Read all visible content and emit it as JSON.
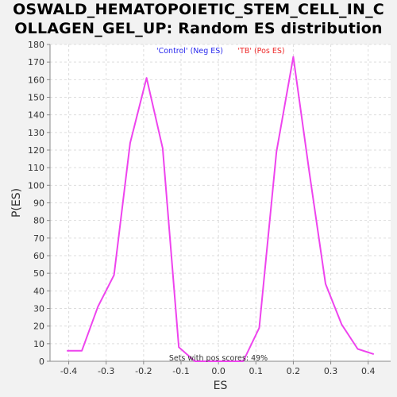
{
  "title_line1": "OSWALD_HEMATOPOIETIC_STEM_CELL_IN_C",
  "title_line2": "OLLAGEN_GEL_UP: Random ES distribution",
  "colors": {
    "background": "#f2f2f2",
    "plot_background": "#ffffff",
    "line": "#ee44ee",
    "neg_legend": "#2a2aee",
    "pos_legend": "#ee2a2a",
    "grid": "#dddddd"
  },
  "chart_data": {
    "type": "line",
    "title": "OSWALD_HEMATOPOIETIC_STEM_CELL_IN_COLLAGEN_GEL_UP: Random ES distribution",
    "xlabel": "ES",
    "ylabel": "P(ES)",
    "xlim": [
      -0.45,
      0.46
    ],
    "ylim": [
      0,
      180
    ],
    "grid": true,
    "x_ticks": [
      "-0.4",
      "-0.3",
      "-0.2",
      "-0.1",
      "0.0",
      "0.1",
      "0.2",
      "0.3",
      "0.4"
    ],
    "x_tick_values": [
      -0.4,
      -0.3,
      -0.2,
      -0.1,
      0.0,
      0.1,
      0.2,
      0.3,
      0.4
    ],
    "y_ticks": [
      "0",
      "10",
      "20",
      "30",
      "40",
      "50",
      "60",
      "70",
      "80",
      "90",
      "100",
      "110",
      "120",
      "130",
      "140",
      "150",
      "160",
      "170",
      "180"
    ],
    "y_tick_values": [
      0,
      10,
      20,
      30,
      40,
      50,
      60,
      70,
      80,
      90,
      100,
      110,
      120,
      130,
      140,
      150,
      160,
      170,
      180
    ],
    "legend": [
      {
        "label": "'Control' (Neg ES)",
        "color": "#2a2aee"
      },
      {
        "label": "'TB' (Pos ES)",
        "color": "#ee2a2a"
      }
    ],
    "annotation": "Sets with pos scores: 49%",
    "series": [
      {
        "color": "#ee44ee",
        "x": [
          -0.405,
          -0.365,
          -0.322,
          -0.279,
          -0.236,
          -0.192,
          -0.149,
          -0.106,
          -0.063,
          -0.02,
          0.023,
          0.066,
          0.109,
          0.155,
          0.2,
          0.243,
          0.286,
          0.329,
          0.372,
          0.415
        ],
        "y": [
          6,
          6,
          31,
          49,
          124,
          161,
          121,
          8,
          0,
          0,
          0,
          0,
          19,
          119,
          173,
          107,
          44,
          21,
          7,
          4
        ]
      }
    ]
  }
}
